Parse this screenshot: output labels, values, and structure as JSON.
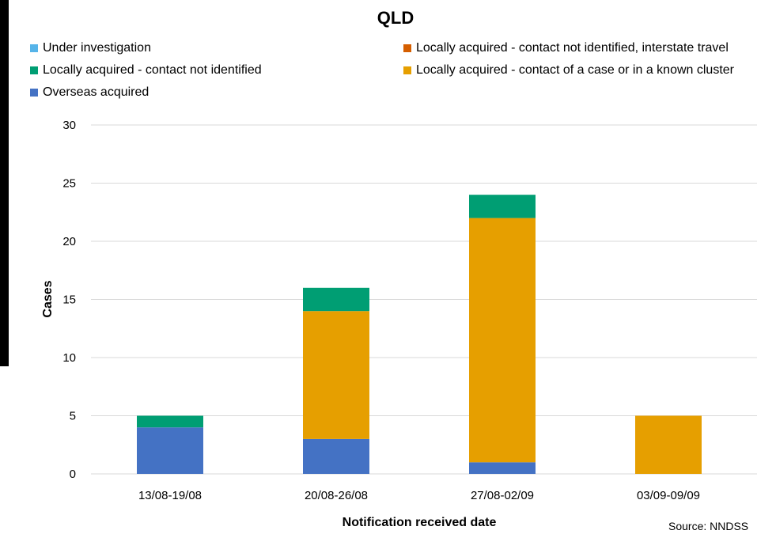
{
  "chart_data": {
    "type": "bar",
    "stacked": true,
    "title": "QLD",
    "xlabel": "Notification received date",
    "ylabel": "Cases",
    "ylim": [
      0,
      30
    ],
    "yticks": [
      0,
      5,
      10,
      15,
      20,
      25,
      30
    ],
    "grid": true,
    "legend_position": "top",
    "categories": [
      "13/08-19/08",
      "20/08-26/08",
      "27/08-02/09",
      "03/09-09/09"
    ],
    "series": [
      {
        "name": "Overseas acquired",
        "color": "#4472C4",
        "values": [
          4,
          3,
          1,
          0
        ]
      },
      {
        "name": "Locally acquired - contact of a case or in a known cluster",
        "color": "#E69F00",
        "values": [
          0,
          11,
          21,
          5
        ]
      },
      {
        "name": "Locally acquired - contact not identified",
        "color": "#009E73",
        "values": [
          1,
          2,
          2,
          0
        ]
      },
      {
        "name": "Locally acquired - contact not identified, interstate travel",
        "color": "#D55E00",
        "values": [
          0,
          0,
          0,
          0
        ]
      },
      {
        "name": "Under investigation",
        "color": "#56B4E9",
        "values": [
          0,
          0,
          0,
          0
        ]
      }
    ],
    "legend_order": [
      4,
      3,
      2,
      1,
      0
    ],
    "source": "Source: NNDSS"
  }
}
